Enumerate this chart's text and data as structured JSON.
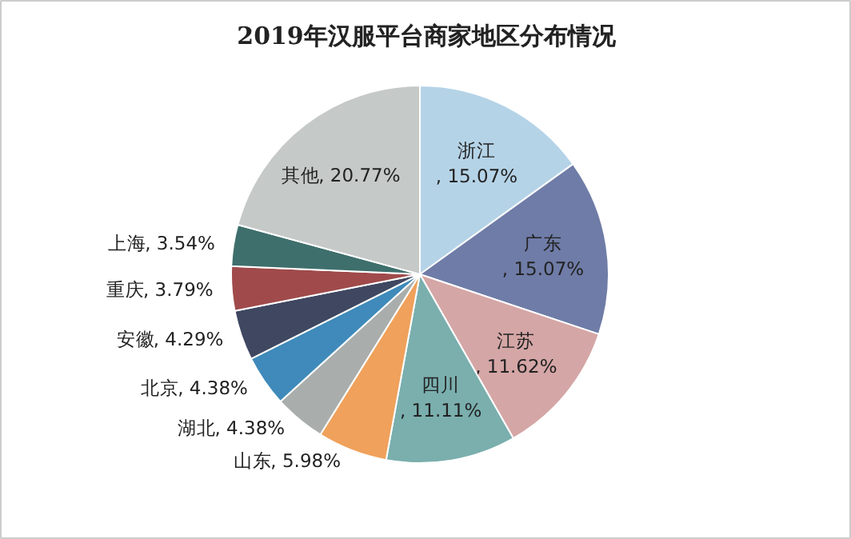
{
  "chart_data": {
    "type": "pie",
    "title": "2019年汉服平台商家地区分布情况",
    "categories": [
      "浙江",
      "广东",
      "江苏",
      "四川",
      "山东",
      "湖北",
      "北京",
      "安徽",
      "重庆",
      "上海",
      "其他"
    ],
    "values": [
      15.07,
      15.07,
      11.62,
      11.11,
      5.98,
      4.38,
      4.38,
      4.29,
      3.79,
      3.54,
      20.77
    ],
    "colors": [
      "#b5d3e7",
      "#6f7ca7",
      "#d5a6a6",
      "#7aafae",
      "#f0a15b",
      "#a9aeac",
      "#3f8aba",
      "#3f4761",
      "#a04a4b",
      "#3e6f6c",
      "#c5c9c8"
    ],
    "value_labels": [
      ", 15.07%",
      ", 15.07%",
      ", 11.62%",
      ", 11.11%",
      ", 5.98%",
      ", 4.38%",
      ", 4.38%",
      ", 4.29%",
      ", 3.79%",
      ", 3.54%",
      ", 20.77%"
    ]
  }
}
